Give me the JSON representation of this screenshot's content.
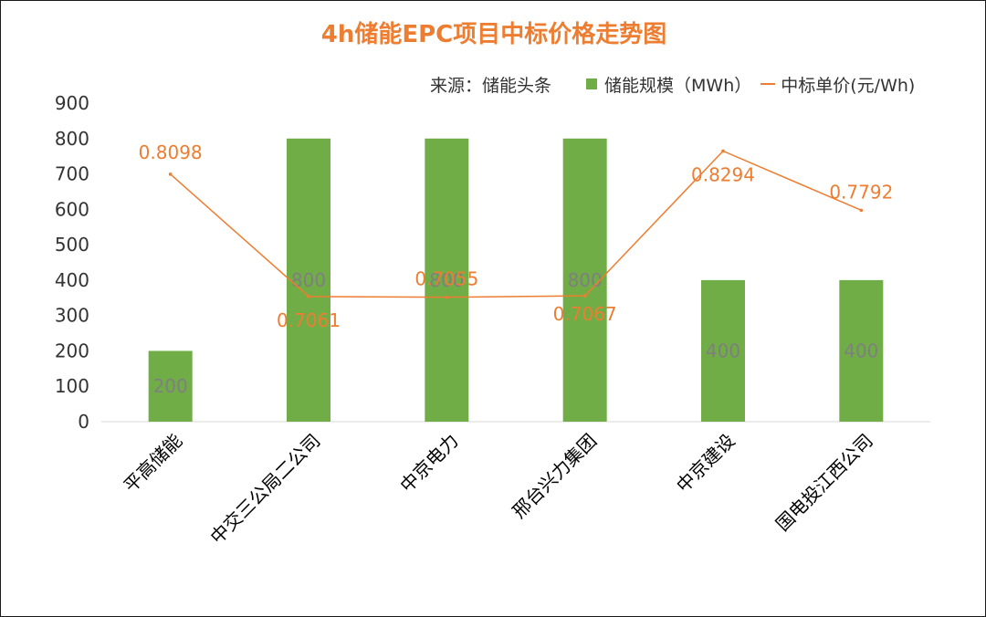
{
  "title": "4h储能EPC项目中标价格走势图",
  "legend": {
    "source": "来源：储能头条",
    "bar_label": "储能规模（MWh）",
    "line_label": "中标单价(元/Wh)"
  },
  "colors": {
    "bar": "#70ad47",
    "line": "#ed7d31",
    "bar_label": "#7f7f7f",
    "title": "#ed7d31"
  },
  "chart_data": {
    "type": "bar",
    "title": "4h储能EPC项目中标价格走势图",
    "categories": [
      "平高储能",
      "中交三公局二公司",
      "中京电力",
      "邢台兴力集团",
      "中京建设",
      "国电投江西公司"
    ],
    "series": [
      {
        "name": "储能规模（MWh）",
        "type": "bar",
        "axis": "left",
        "values": [
          200,
          800,
          800,
          800,
          400,
          400
        ],
        "labels": [
          "200",
          "800",
          "800",
          "800",
          "400",
          "400"
        ]
      },
      {
        "name": "中标单价(元/Wh)",
        "type": "line",
        "axis": "secondary",
        "values": [
          0.8098,
          0.7061,
          0.7055,
          0.7067,
          0.8294,
          0.7792
        ],
        "labels": [
          "0.8098",
          "0.7061",
          "0.7055",
          "0.7067",
          "0.8294",
          "0.7792"
        ]
      }
    ],
    "y_ticks": [
      "0",
      "100",
      "200",
      "300",
      "400",
      "500",
      "600",
      "700",
      "800",
      "900"
    ],
    "ylim": [
      0,
      900
    ],
    "y2lim": [
      0.6,
      0.87
    ],
    "grid": false,
    "legend_position": "top-right"
  }
}
